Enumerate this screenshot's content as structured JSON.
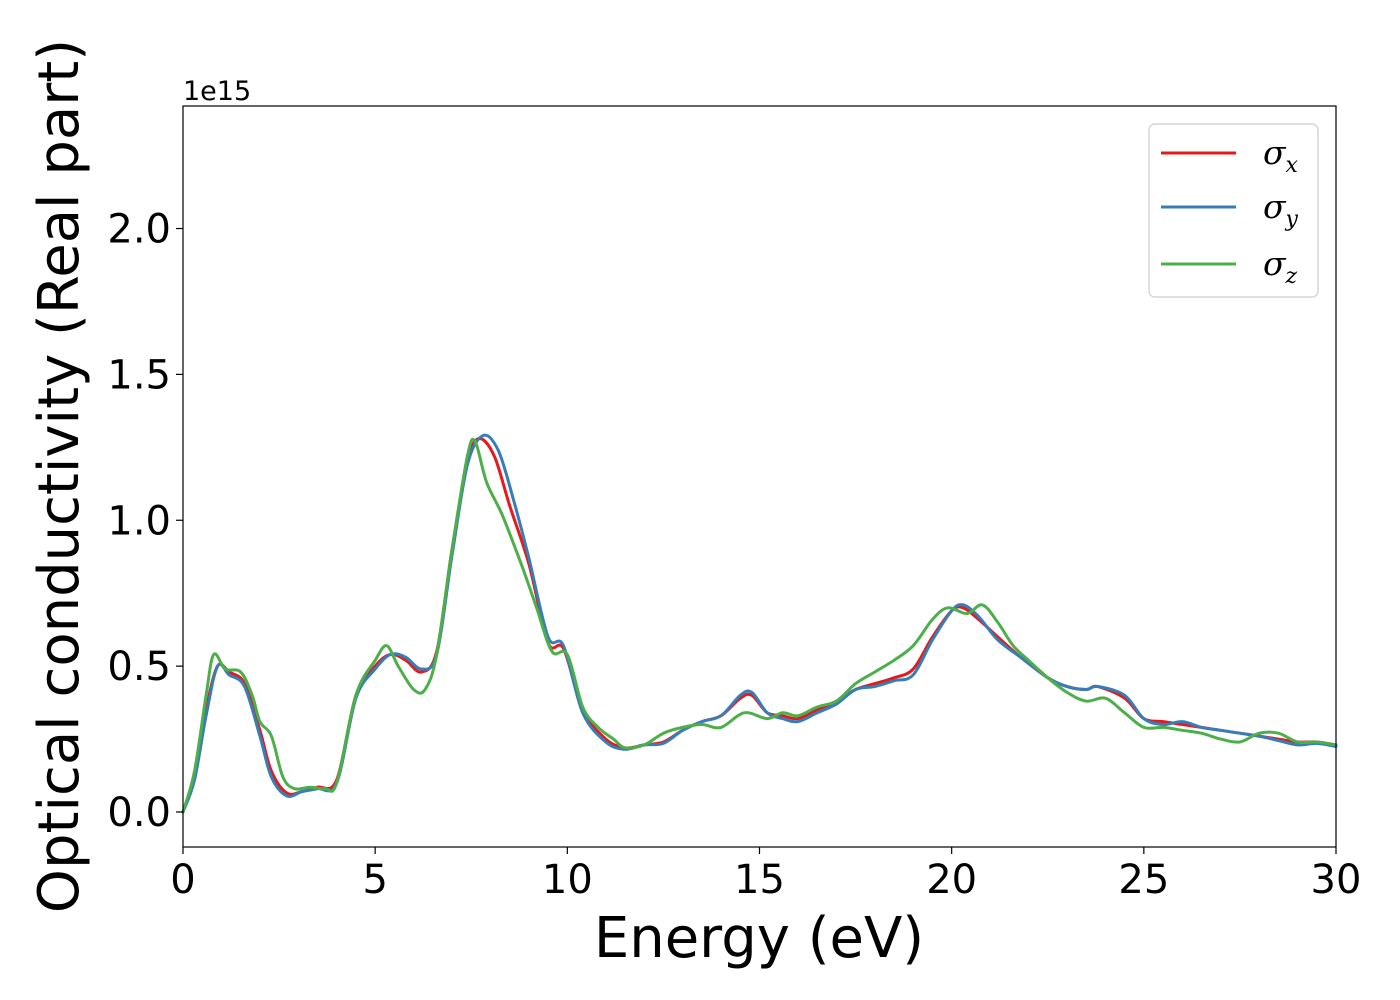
{
  "chart_data": {
    "type": "line",
    "title": "",
    "xlabel": "Energy (eV)",
    "ylabel": "Optical conductivity (Real part)",
    "y_offset_text": "1e15",
    "xlim": [
      0,
      30
    ],
    "ylim": [
      -0.12,
      2.42
    ],
    "x_ticks": [
      0,
      5,
      10,
      15,
      20,
      25,
      30
    ],
    "x_tick_labels": [
      "0",
      "5",
      "10",
      "15",
      "20",
      "25",
      "30"
    ],
    "y_ticks": [
      0.0,
      0.5,
      1.0,
      1.5,
      2.0
    ],
    "y_tick_labels": [
      "0.0",
      "0.5",
      "1.0",
      "1.5",
      "2.0"
    ],
    "y_scale_factor": 1000000000000000.0,
    "grid": false,
    "legend_position": "top-right",
    "series": [
      {
        "name": "σx",
        "symbol": "σ",
        "subscript": "x",
        "color": "#e41a1c",
        "points": [
          [
            0,
            0
          ],
          [
            0.3,
            0.12
          ],
          [
            0.6,
            0.35
          ],
          [
            0.9,
            0.5
          ],
          [
            1.2,
            0.48
          ],
          [
            1.6,
            0.44
          ],
          [
            2.0,
            0.28
          ],
          [
            2.3,
            0.14
          ],
          [
            2.7,
            0.065
          ],
          [
            3.1,
            0.07
          ],
          [
            3.5,
            0.085
          ],
          [
            4.0,
            0.11
          ],
          [
            4.5,
            0.4
          ],
          [
            5.0,
            0.5
          ],
          [
            5.4,
            0.54
          ],
          [
            5.8,
            0.52
          ],
          [
            6.2,
            0.48
          ],
          [
            6.6,
            0.55
          ],
          [
            7.0,
            0.9
          ],
          [
            7.4,
            1.2
          ],
          [
            7.7,
            1.28
          ],
          [
            8.1,
            1.22
          ],
          [
            8.5,
            1.05
          ],
          [
            9.0,
            0.85
          ],
          [
            9.5,
            0.58
          ],
          [
            9.9,
            0.56
          ],
          [
            10.4,
            0.35
          ],
          [
            11.0,
            0.25
          ],
          [
            11.5,
            0.22
          ],
          [
            12.0,
            0.23
          ],
          [
            12.5,
            0.24
          ],
          [
            13.0,
            0.28
          ],
          [
            13.5,
            0.31
          ],
          [
            14.0,
            0.33
          ],
          [
            14.5,
            0.39
          ],
          [
            14.8,
            0.4
          ],
          [
            15.2,
            0.34
          ],
          [
            15.6,
            0.33
          ],
          [
            16.0,
            0.32
          ],
          [
            16.5,
            0.35
          ],
          [
            17.0,
            0.38
          ],
          [
            17.5,
            0.42
          ],
          [
            18.0,
            0.44
          ],
          [
            18.5,
            0.46
          ],
          [
            19.0,
            0.49
          ],
          [
            19.5,
            0.6
          ],
          [
            20.0,
            0.69
          ],
          [
            20.3,
            0.7
          ],
          [
            20.7,
            0.66
          ],
          [
            21.2,
            0.6
          ],
          [
            21.8,
            0.53
          ],
          [
            22.5,
            0.46
          ],
          [
            23.0,
            0.43
          ],
          [
            23.5,
            0.42
          ],
          [
            23.8,
            0.43
          ],
          [
            24.5,
            0.39
          ],
          [
            25.0,
            0.32
          ],
          [
            25.5,
            0.31
          ],
          [
            26.0,
            0.3
          ],
          [
            26.5,
            0.29
          ],
          [
            27.0,
            0.28
          ],
          [
            27.5,
            0.27
          ],
          [
            28.0,
            0.26
          ],
          [
            28.5,
            0.25
          ],
          [
            29.0,
            0.24
          ],
          [
            29.5,
            0.24
          ],
          [
            30.0,
            0.23
          ]
        ]
      },
      {
        "name": "σy",
        "symbol": "σ",
        "subscript": "y",
        "color": "#377eb8",
        "points": [
          [
            0,
            0
          ],
          [
            0.3,
            0.11
          ],
          [
            0.6,
            0.33
          ],
          [
            0.9,
            0.5
          ],
          [
            1.2,
            0.47
          ],
          [
            1.6,
            0.43
          ],
          [
            2.0,
            0.26
          ],
          [
            2.3,
            0.12
          ],
          [
            2.7,
            0.055
          ],
          [
            3.1,
            0.07
          ],
          [
            3.5,
            0.08
          ],
          [
            4.0,
            0.1
          ],
          [
            4.5,
            0.39
          ],
          [
            5.0,
            0.49
          ],
          [
            5.4,
            0.54
          ],
          [
            5.8,
            0.53
          ],
          [
            6.2,
            0.49
          ],
          [
            6.6,
            0.54
          ],
          [
            7.0,
            0.88
          ],
          [
            7.4,
            1.19
          ],
          [
            7.8,
            1.29
          ],
          [
            8.2,
            1.24
          ],
          [
            8.6,
            1.07
          ],
          [
            9.0,
            0.87
          ],
          [
            9.5,
            0.6
          ],
          [
            9.9,
            0.57
          ],
          [
            10.4,
            0.34
          ],
          [
            11.0,
            0.24
          ],
          [
            11.5,
            0.215
          ],
          [
            12.0,
            0.23
          ],
          [
            12.5,
            0.235
          ],
          [
            13.0,
            0.28
          ],
          [
            13.5,
            0.31
          ],
          [
            14.0,
            0.33
          ],
          [
            14.5,
            0.4
          ],
          [
            14.8,
            0.41
          ],
          [
            15.2,
            0.34
          ],
          [
            15.6,
            0.32
          ],
          [
            16.0,
            0.31
          ],
          [
            16.5,
            0.34
          ],
          [
            17.0,
            0.37
          ],
          [
            17.5,
            0.42
          ],
          [
            18.0,
            0.43
          ],
          [
            18.5,
            0.45
          ],
          [
            19.0,
            0.47
          ],
          [
            19.5,
            0.59
          ],
          [
            20.0,
            0.69
          ],
          [
            20.3,
            0.71
          ],
          [
            20.7,
            0.67
          ],
          [
            21.2,
            0.59
          ],
          [
            21.8,
            0.53
          ],
          [
            22.5,
            0.46
          ],
          [
            23.0,
            0.43
          ],
          [
            23.5,
            0.42
          ],
          [
            23.8,
            0.43
          ],
          [
            24.5,
            0.4
          ],
          [
            25.0,
            0.32
          ],
          [
            25.5,
            0.3
          ],
          [
            26.0,
            0.31
          ],
          [
            26.5,
            0.29
          ],
          [
            27.0,
            0.28
          ],
          [
            27.5,
            0.27
          ],
          [
            28.0,
            0.26
          ],
          [
            28.5,
            0.245
          ],
          [
            29.0,
            0.23
          ],
          [
            29.5,
            0.235
          ],
          [
            30.0,
            0.225
          ]
        ]
      },
      {
        "name": "σz",
        "symbol": "σ",
        "subscript": "z",
        "color": "#4daf4a",
        "points": [
          [
            0,
            0
          ],
          [
            0.3,
            0.14
          ],
          [
            0.6,
            0.4
          ],
          [
            0.8,
            0.54
          ],
          [
            1.1,
            0.49
          ],
          [
            1.5,
            0.48
          ],
          [
            1.8,
            0.4
          ],
          [
            2.0,
            0.31
          ],
          [
            2.3,
            0.26
          ],
          [
            2.6,
            0.12
          ],
          [
            2.9,
            0.08
          ],
          [
            3.3,
            0.085
          ],
          [
            3.7,
            0.08
          ],
          [
            4.0,
            0.1
          ],
          [
            4.5,
            0.4
          ],
          [
            5.0,
            0.52
          ],
          [
            5.3,
            0.57
          ],
          [
            5.6,
            0.5
          ],
          [
            6.0,
            0.42
          ],
          [
            6.3,
            0.42
          ],
          [
            6.6,
            0.54
          ],
          [
            7.0,
            0.9
          ],
          [
            7.4,
            1.22
          ],
          [
            7.6,
            1.27
          ],
          [
            7.9,
            1.13
          ],
          [
            8.3,
            1.02
          ],
          [
            8.8,
            0.85
          ],
          [
            9.2,
            0.7
          ],
          [
            9.6,
            0.55
          ],
          [
            10.0,
            0.54
          ],
          [
            10.4,
            0.36
          ],
          [
            10.8,
            0.29
          ],
          [
            11.2,
            0.25
          ],
          [
            11.5,
            0.22
          ],
          [
            12.0,
            0.23
          ],
          [
            12.5,
            0.27
          ],
          [
            13.0,
            0.29
          ],
          [
            13.5,
            0.3
          ],
          [
            14.0,
            0.29
          ],
          [
            14.6,
            0.34
          ],
          [
            15.2,
            0.32
          ],
          [
            15.6,
            0.34
          ],
          [
            16.0,
            0.33
          ],
          [
            16.5,
            0.36
          ],
          [
            17.0,
            0.38
          ],
          [
            17.5,
            0.44
          ],
          [
            18.0,
            0.48
          ],
          [
            18.5,
            0.52
          ],
          [
            19.0,
            0.57
          ],
          [
            19.5,
            0.66
          ],
          [
            19.9,
            0.7
          ],
          [
            20.4,
            0.68
          ],
          [
            20.8,
            0.71
          ],
          [
            21.2,
            0.65
          ],
          [
            21.6,
            0.57
          ],
          [
            22.0,
            0.52
          ],
          [
            22.5,
            0.46
          ],
          [
            23.0,
            0.41
          ],
          [
            23.5,
            0.38
          ],
          [
            24.0,
            0.39
          ],
          [
            24.5,
            0.34
          ],
          [
            25.0,
            0.29
          ],
          [
            25.5,
            0.29
          ],
          [
            26.0,
            0.28
          ],
          [
            26.5,
            0.27
          ],
          [
            27.0,
            0.25
          ],
          [
            27.5,
            0.24
          ],
          [
            28.0,
            0.27
          ],
          [
            28.5,
            0.27
          ],
          [
            29.0,
            0.24
          ],
          [
            29.5,
            0.24
          ],
          [
            30.0,
            0.23
          ]
        ]
      }
    ]
  }
}
